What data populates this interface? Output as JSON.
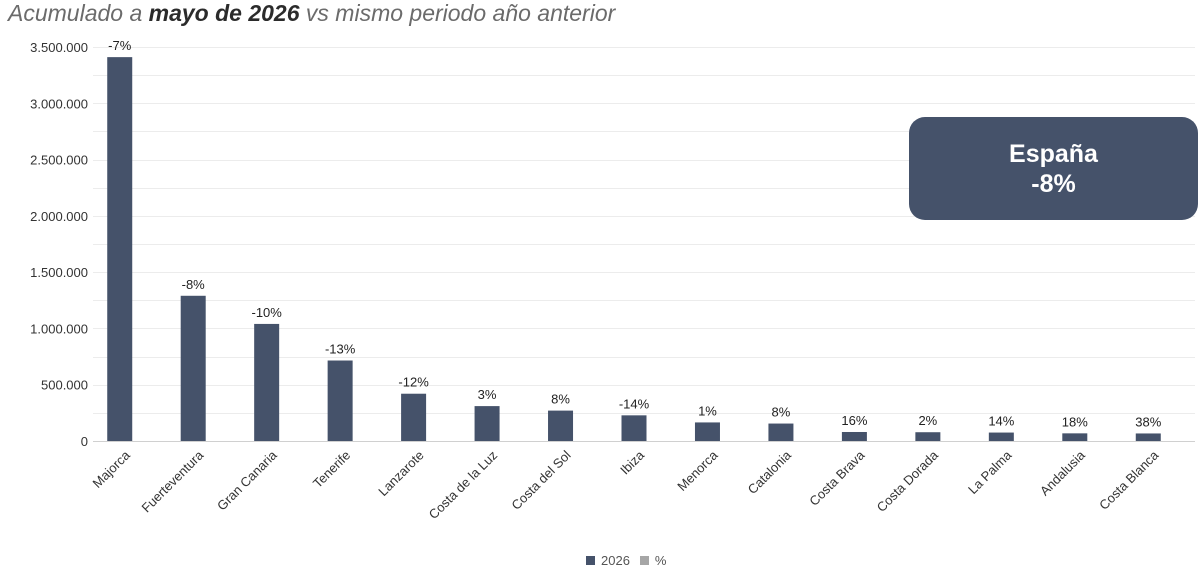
{
  "title": {
    "prefix": "Acumulado a ",
    "bold": "mayo de 2026",
    "suffix": " vs mismo periodo año anterior"
  },
  "callout": {
    "line1": "España",
    "line2": "-8%"
  },
  "legend": [
    {
      "label": "2026",
      "color": "#45526a"
    },
    {
      "label": "%",
      "color": "#a6a6a6"
    }
  ],
  "chart_data": {
    "type": "bar",
    "categories": [
      "Majorca",
      "Fuerteventura",
      "Gran Canaria",
      "Tenerife",
      "Lanzarote",
      "Costa de la Luz",
      "Costa del Sol",
      "Ibiza",
      "Menorca",
      "Catalonia",
      "Costa Brava",
      "Costa Dorada",
      "La Palma",
      "Andalusia",
      "Costa Blanca"
    ],
    "series": [
      {
        "name": "2026",
        "values": [
          3410000,
          1290000,
          1040000,
          715000,
          420000,
          310000,
          270000,
          228000,
          165000,
          155000,
          80000,
          78000,
          75000,
          68000,
          67000
        ]
      }
    ],
    "data_labels": [
      "-7%",
      "-8%",
      "-10%",
      "-13%",
      "-12%",
      "3%",
      "8%",
      "-14%",
      "1%",
      "8%",
      "16%",
      "2%",
      "14%",
      "18%",
      "38%"
    ],
    "yticks": [
      "0",
      "500.000",
      "1.000.000",
      "1.500.000",
      "2.000.000",
      "2.500.000",
      "3.000.000",
      "3.500.000"
    ],
    "ylim": [
      0,
      3500000
    ],
    "grid": true,
    "legend_position": "bottom",
    "bar_color": "#45526a"
  }
}
